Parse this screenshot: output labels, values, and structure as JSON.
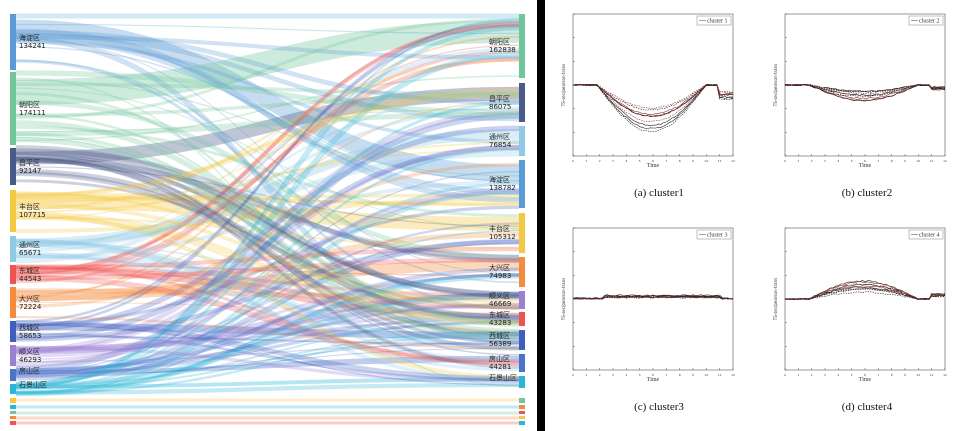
{
  "left": {
    "title": "",
    "left_nodes": [
      {
        "name": "海淀区",
        "value": "134241",
        "color": "#5b9bd5"
      },
      {
        "name": "朝阳区",
        "value": "174111",
        "color": "#70c69a"
      },
      {
        "name": "昌平区",
        "value": "92147",
        "color": "#4a5a8a"
      },
      {
        "name": "丰台区",
        "value": "107715",
        "color": "#f5c842"
      },
      {
        "name": "通州区",
        "value": "65671",
        "color": "#8ecae6"
      },
      {
        "name": "东城区",
        "value": "44543",
        "color": "#ef5350"
      },
      {
        "name": "大兴区",
        "value": "72224",
        "color": "#f58b3c"
      },
      {
        "name": "西城区",
        "value": "58653",
        "color": "#3f5fbf"
      },
      {
        "name": "顺义区",
        "value": "46293",
        "color": "#9b7fd4"
      },
      {
        "name": "房山区",
        "value": "",
        "color": "#4a73c9"
      },
      {
        "name": "石景山区",
        "value": "",
        "color": "#2bb6d9"
      }
    ],
    "right_nodes": [
      {
        "name": "朝阳区",
        "value": "162838",
        "color": "#70c69a"
      },
      {
        "name": "昌平区",
        "value": "86075",
        "color": "#4a5a8a"
      },
      {
        "name": "通州区",
        "value": "76854",
        "color": "#8ecae6"
      },
      {
        "name": "海淀区",
        "value": "138782",
        "color": "#5b9bd5"
      },
      {
        "name": "丰台区",
        "value": "105312",
        "color": "#f5c842"
      },
      {
        "name": "大兴区",
        "value": "74983",
        "color": "#f58b3c"
      },
      {
        "name": "顺义区",
        "value": "46669",
        "color": "#9b7fd4"
      },
      {
        "name": "东城区",
        "value": "43283",
        "color": "#ef5350"
      },
      {
        "name": "西城区",
        "value": "56389",
        "color": "#3f5fbf"
      },
      {
        "name": "房山区",
        "value": "44281",
        "color": "#4a73c9"
      },
      {
        "name": "石景山区",
        "value": "",
        "color": "#2bb6d9"
      }
    ]
  },
  "right": {
    "panels": [
      {
        "caption": "(a) cluster1",
        "legend": "cluster 1",
        "xlabel": "Time",
        "ylabel": "TS-sec/pearson-trans",
        "shape": "deep"
      },
      {
        "caption": "(b) cluster2",
        "legend": "cluster 2",
        "xlabel": "Time",
        "ylabel": "TS-sec/pearson-trans",
        "shape": "shallow"
      },
      {
        "caption": "(c) cluster3",
        "legend": "cluster 3",
        "xlabel": "Time",
        "ylabel": "TS-sec/pearson-trans",
        "shape": "flat"
      },
      {
        "caption": "(d) cluster4",
        "legend": "cluster 4",
        "xlabel": "Time",
        "ylabel": "TS-sec/pearson-trans",
        "shape": "bump"
      }
    ]
  }
}
